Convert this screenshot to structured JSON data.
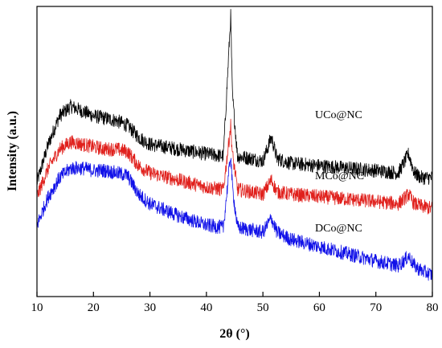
{
  "chart_data": {
    "type": "line",
    "xlabel": "2θ (°)",
    "ylabel": "Intensity (a.u.)",
    "xlim": [
      10,
      80
    ],
    "x_ticks": [
      10,
      20,
      30,
      40,
      50,
      60,
      70,
      80
    ],
    "y_ticks_shown": false,
    "grid": false,
    "legend": "none",
    "series": [
      {
        "name": "UCo@NC",
        "color": "#000000",
        "noise": 0.06,
        "profile": [
          [
            10,
            0.46
          ],
          [
            12,
            0.62
          ],
          [
            14,
            0.74
          ],
          [
            16,
            0.78
          ],
          [
            18,
            0.76
          ],
          [
            20,
            0.74
          ],
          [
            22,
            0.73
          ],
          [
            24,
            0.72
          ],
          [
            26,
            0.7
          ],
          [
            28,
            0.65
          ],
          [
            30,
            0.62
          ],
          [
            35,
            0.6
          ],
          [
            40,
            0.58
          ],
          [
            43,
            0.57
          ],
          [
            44.3,
            1.16
          ],
          [
            44.6,
            0.83
          ],
          [
            45.5,
            0.57
          ],
          [
            48,
            0.56
          ],
          [
            50,
            0.55
          ],
          [
            51.5,
            0.65
          ],
          [
            52.5,
            0.56
          ],
          [
            55,
            0.54
          ],
          [
            60,
            0.53
          ],
          [
            65,
            0.52
          ],
          [
            70,
            0.51
          ],
          [
            74,
            0.5
          ],
          [
            75.8,
            0.58
          ],
          [
            76.8,
            0.5
          ],
          [
            78,
            0.48
          ],
          [
            80,
            0.48
          ]
        ]
      },
      {
        "name": "MCo@NC",
        "color": "#e0201c",
        "noise": 0.06,
        "profile": [
          [
            10,
            0.4
          ],
          [
            12,
            0.52
          ],
          [
            14,
            0.6
          ],
          [
            16,
            0.63
          ],
          [
            18,
            0.62
          ],
          [
            20,
            0.61
          ],
          [
            22,
            0.6
          ],
          [
            24,
            0.6
          ],
          [
            26,
            0.59
          ],
          [
            28,
            0.53
          ],
          [
            30,
            0.5
          ],
          [
            35,
            0.47
          ],
          [
            40,
            0.44
          ],
          [
            43,
            0.43
          ],
          [
            44.3,
            0.7
          ],
          [
            44.6,
            0.58
          ],
          [
            45.5,
            0.43
          ],
          [
            48,
            0.42
          ],
          [
            50,
            0.41
          ],
          [
            51.5,
            0.47
          ],
          [
            52.5,
            0.42
          ],
          [
            55,
            0.41
          ],
          [
            60,
            0.4
          ],
          [
            65,
            0.39
          ],
          [
            70,
            0.38
          ],
          [
            74,
            0.37
          ],
          [
            75.8,
            0.41
          ],
          [
            76.8,
            0.37
          ],
          [
            78,
            0.36
          ],
          [
            80,
            0.35
          ]
        ]
      },
      {
        "name": "DCo@NC",
        "color": "#1010e8",
        "noise": 0.06,
        "profile": [
          [
            10,
            0.28
          ],
          [
            12,
            0.4
          ],
          [
            14,
            0.48
          ],
          [
            16,
            0.52
          ],
          [
            18,
            0.52
          ],
          [
            20,
            0.51
          ],
          [
            22,
            0.51
          ],
          [
            24,
            0.5
          ],
          [
            26,
            0.49
          ],
          [
            28,
            0.41
          ],
          [
            30,
            0.37
          ],
          [
            35,
            0.32
          ],
          [
            40,
            0.28
          ],
          [
            43,
            0.27
          ],
          [
            44.3,
            0.58
          ],
          [
            44.6,
            0.44
          ],
          [
            45.5,
            0.27
          ],
          [
            48,
            0.26
          ],
          [
            50,
            0.25
          ],
          [
            51.5,
            0.31
          ],
          [
            52.5,
            0.25
          ],
          [
            55,
            0.22
          ],
          [
            60,
            0.19
          ],
          [
            65,
            0.16
          ],
          [
            70,
            0.13
          ],
          [
            74,
            0.11
          ],
          [
            75.8,
            0.15
          ],
          [
            76.8,
            0.11
          ],
          [
            78,
            0.09
          ],
          [
            80,
            0.07
          ]
        ]
      }
    ],
    "annotations": [
      "UCo@NC",
      "MCo@NC",
      "DCo@NC"
    ]
  }
}
